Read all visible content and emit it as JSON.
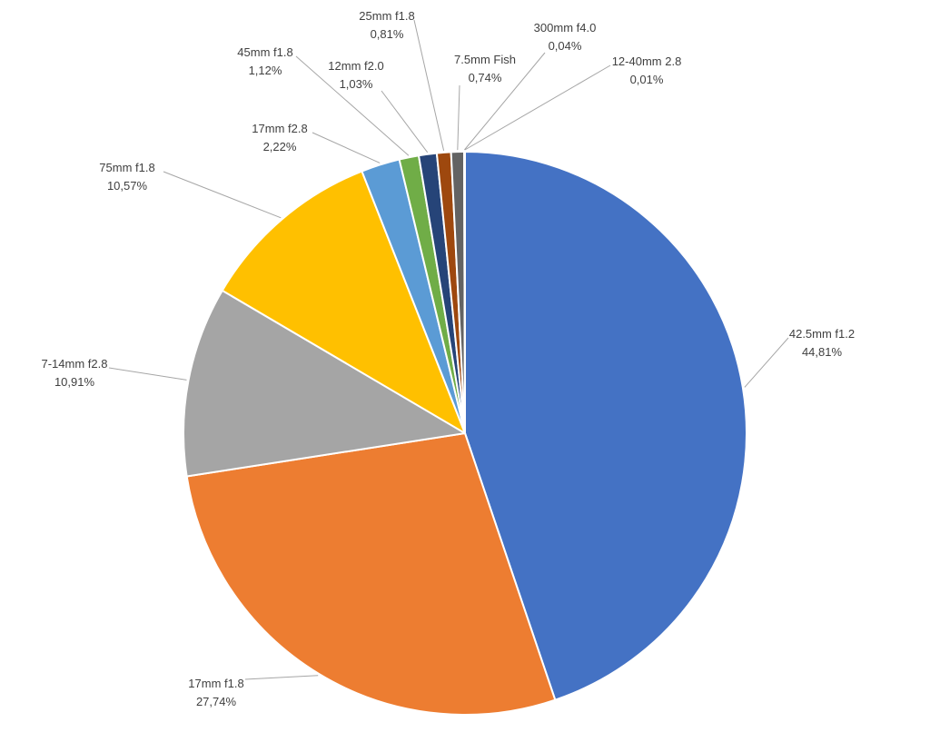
{
  "chart_data": {
    "type": "pie",
    "slices": [
      {
        "label": "42.5mm f1.2",
        "value": 44.81,
        "value_text": "44,81%",
        "color": "#4472C4"
      },
      {
        "label": "17mm f1.8",
        "value": 27.74,
        "value_text": "27,74%",
        "color": "#ED7D31"
      },
      {
        "label": "7-14mm f2.8",
        "value": 10.91,
        "value_text": "10,91%",
        "color": "#A5A5A5"
      },
      {
        "label": "75mm f1.8",
        "value": 10.57,
        "value_text": "10,57%",
        "color": "#FFC000"
      },
      {
        "label": "17mm f2.8",
        "value": 2.22,
        "value_text": "2,22%",
        "color": "#5B9BD5"
      },
      {
        "label": "45mm f1.8",
        "value": 1.12,
        "value_text": "1,12%",
        "color": "#70AD47"
      },
      {
        "label": "12mm f2.0",
        "value": 1.03,
        "value_text": "1,03%",
        "color": "#264478"
      },
      {
        "label": "25mm f1.8",
        "value": 0.81,
        "value_text": "0,81%",
        "color": "#9E480E"
      },
      {
        "label": "7.5mm Fish",
        "value": 0.74,
        "value_text": "0,74%",
        "color": "#636363"
      },
      {
        "label": "300mm f4.0",
        "value": 0.04,
        "value_text": "0,04%",
        "color": "#997300"
      },
      {
        "label": "12-40mm 2.8",
        "value": 0.01,
        "value_text": "0,01%",
        "color": "#255E91"
      }
    ],
    "legend": "none",
    "data_labels": "outside with leader lines"
  }
}
